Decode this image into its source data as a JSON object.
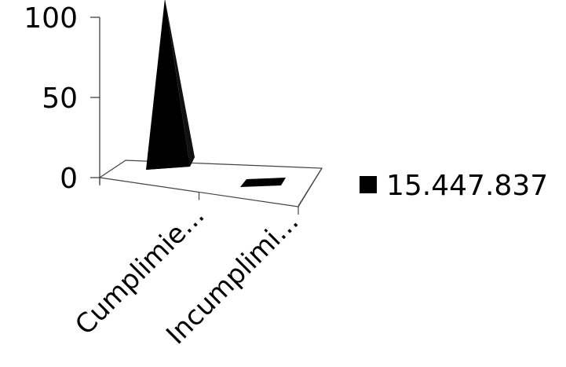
{
  "chart_data": {
    "type": "bar",
    "bar_shape": "pyramid-3d",
    "categories": [
      "Cumplimie...",
      "Incumplimi..."
    ],
    "series": [
      {
        "name": "15.447.837",
        "values": [
          100,
          0
        ]
      }
    ],
    "title": "",
    "xlabel": "",
    "ylabel": "",
    "ylim": [
      0,
      100
    ],
    "yticks": [
      0,
      50,
      100
    ],
    "grid": false,
    "legend_position": "right",
    "colors": {
      "series": "#000000",
      "axis": "#333333",
      "text": "#000000",
      "background": "#ffffff"
    }
  }
}
